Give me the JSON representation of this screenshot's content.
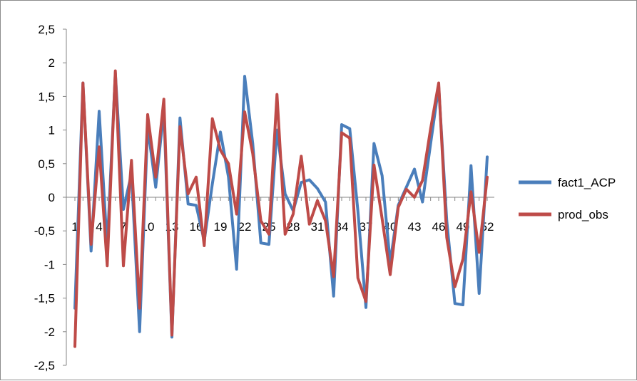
{
  "chart_data": {
    "type": "line",
    "title": "",
    "xlabel": "",
    "ylabel": "",
    "ylim": [
      -2.5,
      2.5
    ],
    "y_ticks": [
      2.5,
      2,
      1.5,
      1,
      0.5,
      0,
      -0.5,
      -1,
      -1.5,
      -2,
      -2.5
    ],
    "y_tick_labels": [
      "2,5",
      "2",
      "1,5",
      "1",
      "0,5",
      "0",
      "-0,5",
      "-1",
      "-1,5",
      "-2",
      "-2,5"
    ],
    "x": [
      1,
      2,
      3,
      4,
      5,
      6,
      7,
      8,
      9,
      10,
      11,
      12,
      13,
      14,
      15,
      16,
      17,
      18,
      19,
      20,
      21,
      22,
      23,
      24,
      25,
      26,
      27,
      28,
      29,
      30,
      31,
      32,
      33,
      34,
      35,
      36,
      37,
      38,
      39,
      40,
      41,
      42,
      43,
      44,
      45,
      46,
      47,
      48,
      49,
      50,
      51,
      52
    ],
    "x_tick_labels": [
      "1",
      "4",
      "7",
      "10",
      "13",
      "16",
      "19",
      "22",
      "25",
      "28",
      "31",
      "34",
      "37",
      "40",
      "43",
      "46",
      "49",
      "52"
    ],
    "grid": false,
    "legend_position": "right",
    "series": [
      {
        "name": "fact1_ACP",
        "color": "#4a7ebb",
        "values": [
          -1.65,
          1.7,
          -0.8,
          1.28,
          -0.75,
          1.85,
          -0.18,
          0.35,
          -2.0,
          1.05,
          0.15,
          1.3,
          -2.08,
          1.18,
          -0.1,
          -0.12,
          -0.65,
          0.2,
          0.97,
          0.3,
          -1.07,
          1.8,
          0.8,
          -0.68,
          -0.7,
          1.0,
          0.05,
          -0.2,
          0.22,
          0.26,
          0.13,
          -0.07,
          -1.47,
          1.08,
          1.02,
          -0.2,
          -1.64,
          0.8,
          0.32,
          -0.98,
          -0.12,
          0.15,
          0.42,
          -0.07,
          0.8,
          1.65,
          -0.35,
          -1.58,
          -1.6,
          0.47,
          -1.43,
          0.6
        ]
      },
      {
        "name": "prod_obs",
        "color": "#be4b48",
        "values": [
          -2.22,
          1.7,
          -0.7,
          0.75,
          -1.02,
          1.88,
          -1.02,
          0.55,
          -1.65,
          1.23,
          0.3,
          1.46,
          -2.05,
          1.05,
          0.05,
          0.3,
          -0.72,
          1.17,
          0.7,
          0.5,
          -0.25,
          1.27,
          0.65,
          -0.35,
          -0.55,
          1.53,
          -0.55,
          -0.25,
          0.61,
          -0.4,
          -0.05,
          -0.35,
          -1.18,
          0.96,
          0.88,
          -1.2,
          -1.55,
          0.48,
          -0.32,
          -1.15,
          -0.15,
          0.12,
          0.0,
          0.25,
          1.02,
          1.7,
          -0.6,
          -1.33,
          -0.92,
          0.08,
          -0.82,
          0.3
        ]
      }
    ]
  }
}
